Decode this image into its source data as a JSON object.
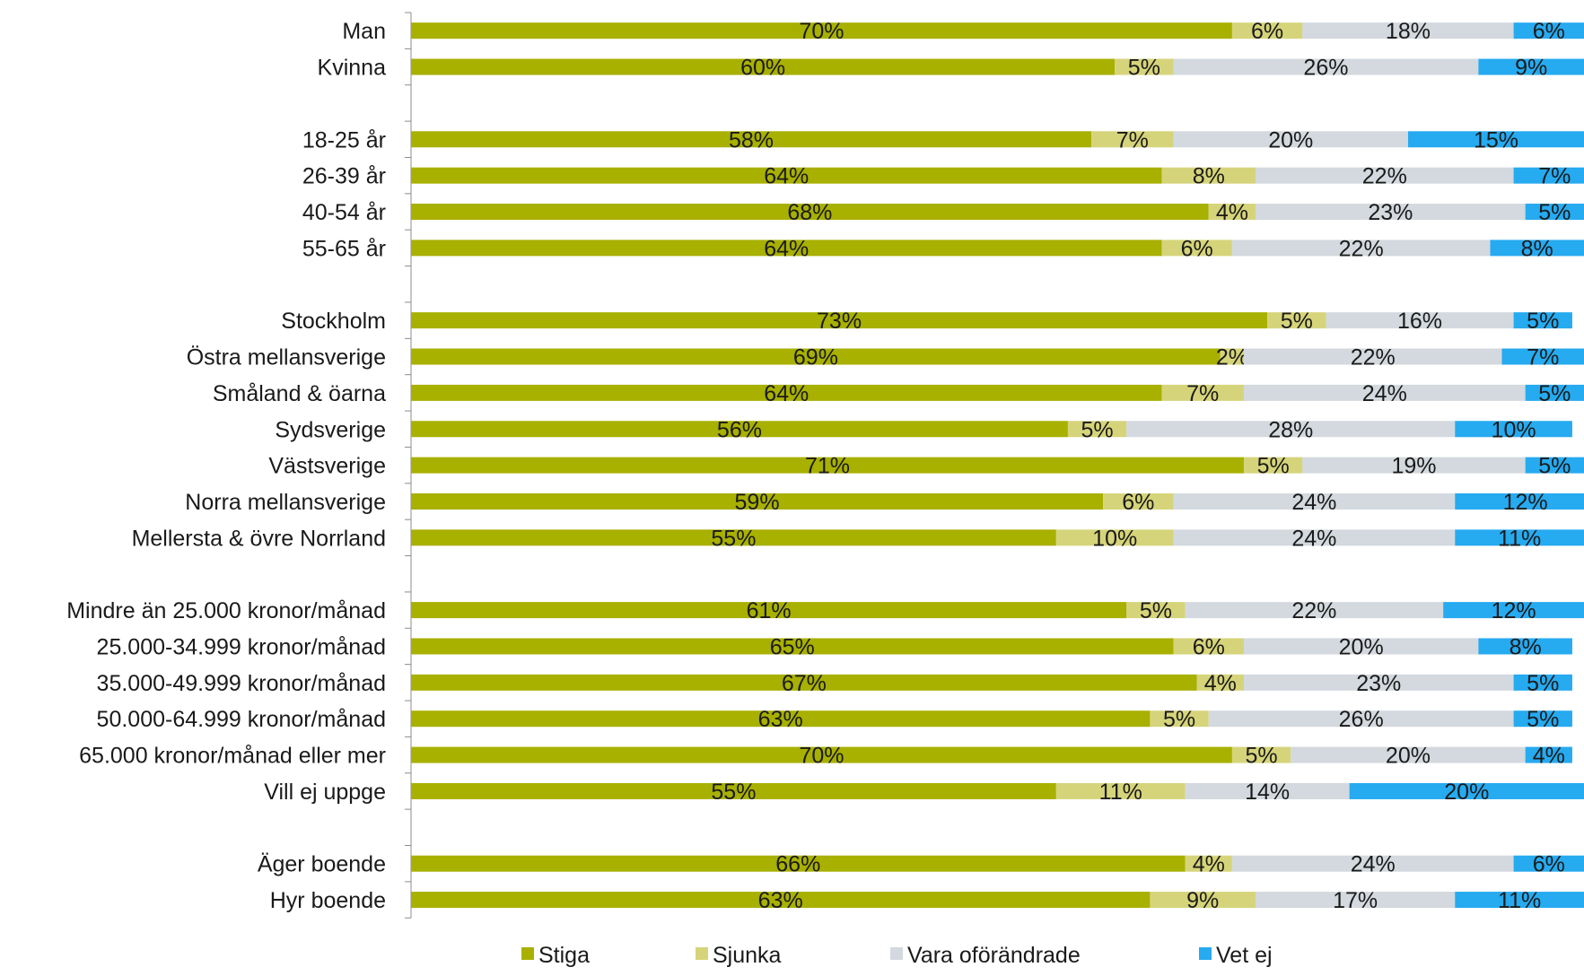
{
  "chart_data": {
    "type": "bar",
    "orientation": "horizontal",
    "stacked": true,
    "xlim": [
      0,
      100
    ],
    "grid": false,
    "legend_position": "bottom",
    "series": [
      {
        "name": "Stiga",
        "color": "#a8b000"
      },
      {
        "name": "Sjunka",
        "color": "#d6d47a"
      },
      {
        "name": "Vara oförändrade",
        "color": "#d3d9de"
      },
      {
        "name": "Vet ej",
        "color": "#26aaf0"
      }
    ],
    "groups": [
      {
        "rows": [
          {
            "label": "Man",
            "values": [
              70,
              6,
              18,
              6
            ]
          },
          {
            "label": "Kvinna",
            "values": [
              60,
              5,
              26,
              9
            ]
          }
        ]
      },
      {
        "rows": [
          {
            "label": "18-25 år",
            "values": [
              58,
              7,
              20,
              15
            ]
          },
          {
            "label": "26-39 år",
            "values": [
              64,
              8,
              22,
              7
            ]
          },
          {
            "label": "40-54 år",
            "values": [
              68,
              4,
              23,
              5
            ]
          },
          {
            "label": "55-65 år",
            "values": [
              64,
              6,
              22,
              8
            ]
          }
        ]
      },
      {
        "rows": [
          {
            "label": "Stockholm",
            "values": [
              73,
              5,
              16,
              5
            ]
          },
          {
            "label": "Östra mellansverige",
            "values": [
              69,
              2,
              22,
              7
            ]
          },
          {
            "label": "Småland & öarna",
            "values": [
              64,
              7,
              24,
              5
            ]
          },
          {
            "label": "Sydsverige",
            "values": [
              56,
              5,
              28,
              10
            ]
          },
          {
            "label": "Västsverige",
            "values": [
              71,
              5,
              19,
              5
            ]
          },
          {
            "label": "Norra mellansverige",
            "values": [
              59,
              6,
              24,
              12
            ]
          },
          {
            "label": "Mellersta & övre Norrland",
            "values": [
              55,
              10,
              24,
              11
            ]
          }
        ]
      },
      {
        "rows": [
          {
            "label": "Mindre än 25.000 kronor/månad",
            "values": [
              61,
              5,
              22,
              12
            ]
          },
          {
            "label": "25.000-34.999 kronor/månad",
            "values": [
              65,
              6,
              20,
              8
            ]
          },
          {
            "label": "35.000-49.999 kronor/månad",
            "values": [
              67,
              4,
              23,
              5
            ]
          },
          {
            "label": "50.000-64.999 kronor/månad",
            "values": [
              63,
              5,
              26,
              5
            ]
          },
          {
            "label": "65.000 kronor/månad eller mer",
            "values": [
              70,
              5,
              20,
              4
            ]
          },
          {
            "label": "Vill ej uppge",
            "values": [
              55,
              11,
              14,
              20
            ]
          }
        ]
      },
      {
        "rows": [
          {
            "label": "Äger boende",
            "values": [
              66,
              4,
              24,
              6
            ]
          },
          {
            "label": "Hyr boende",
            "values": [
              63,
              9,
              17,
              11
            ]
          }
        ]
      }
    ]
  }
}
